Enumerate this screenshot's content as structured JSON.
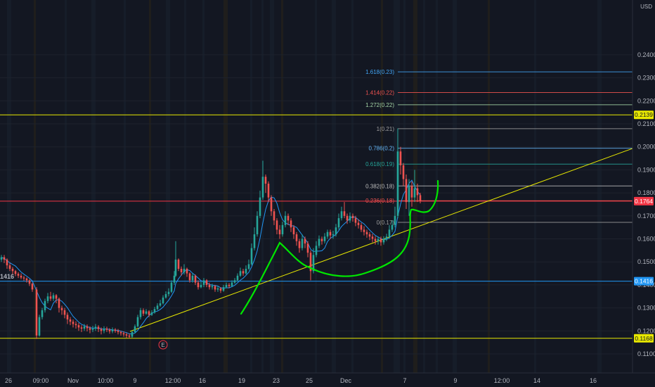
{
  "chart_data": {
    "type": "candlestick",
    "currency_label": "USD",
    "ylim": [
      0.105,
      0.245
    ],
    "y_ticks": [
      "0.2400",
      "0.2300",
      "0.2200",
      "0.2100",
      "0.2000",
      "0.1900",
      "0.1800",
      "0.1700",
      "0.1600",
      "0.1500",
      "0.1400",
      "0.1300",
      "0.1200",
      "0.1100"
    ],
    "x_ticks": [
      "26",
      "09:00",
      "Nov",
      "10:00",
      "9",
      "12:00",
      "16",
      "19",
      "23",
      "25",
      "Dec",
      "7",
      "9",
      "12:00",
      "14",
      "16"
    ],
    "price_badges": [
      {
        "label": "0.2139",
        "value": 0.2139,
        "color": "#e8e800",
        "text_color": "#131722"
      },
      {
        "label": "0.1764",
        "value": 0.1764,
        "color": "#f23645",
        "text_color": "#ffffff"
      },
      {
        "label": "0.1416",
        "value": 0.1416,
        "color": "#2196f3",
        "text_color": "#ffffff"
      },
      {
        "label": "0.1168",
        "value": 0.1168,
        "color": "#e8e800",
        "text_color": "#131722"
      }
    ],
    "left_edge_label": "1416",
    "fibonacci_levels": [
      {
        "label": "1.618(0.23)",
        "value": 0.2326,
        "color": "#42a5f5"
      },
      {
        "label": "1.414(0.22)",
        "value": 0.2236,
        "color": "#ef5350"
      },
      {
        "label": "1.272(0.22)",
        "value": 0.2183,
        "color": "#a5d6a7"
      },
      {
        "label": "1(0.21)",
        "value": 0.2079,
        "color": "#9e9e9e"
      },
      {
        "label": "0.786(0.2)",
        "value": 0.1994,
        "color": "#64b5f6"
      },
      {
        "label": "0.618(0.19)",
        "value": 0.1925,
        "color": "#26a69a"
      },
      {
        "label": "0.382(0.18)",
        "value": 0.183,
        "color": "#bdbdbd"
      },
      {
        "label": "0.236(0.18)",
        "value": 0.1766,
        "color": "#ef5350"
      },
      {
        "label": "0(0.17)",
        "value": 0.1672,
        "color": "#9e9e9e"
      }
    ],
    "event_marker": "E",
    "colors": {
      "up": "#26a69a",
      "down": "#ef5350",
      "ma": "#2196f3",
      "trendline": "#e8e800",
      "drawing": "#00e600",
      "background": "#131722",
      "grid": "#1e222d"
    }
  }
}
